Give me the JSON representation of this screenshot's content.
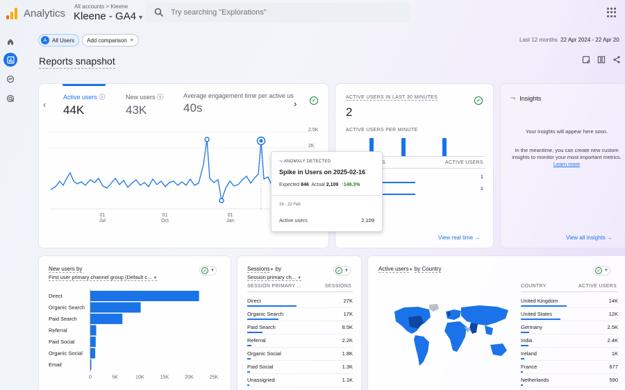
{
  "brand": {
    "app_name": "Analytics",
    "breadcrumb": "All accounts > Kleene",
    "property": "Kleene - GA4",
    "logo_colors": [
      "#f9ab00",
      "#e37400",
      "#e8710a"
    ]
  },
  "search": {
    "placeholder": "Try searching \"Explorations\""
  },
  "filters": {
    "segment_badge": "A",
    "segment": "All Users",
    "add_comparison": "Add comparison"
  },
  "date_range": {
    "label": "Last 12 months",
    "value": "22 Apr 2024 - 22 Apr 20"
  },
  "page_title": "Reports snapshot",
  "overview": {
    "metrics": [
      {
        "label": "Active users",
        "value": "44K"
      },
      {
        "label": "New users",
        "value": "43K"
      },
      {
        "label": "Average engagement time per active us",
        "value": "40s"
      }
    ],
    "y_ticks": [
      "2.5K",
      "2K"
    ],
    "x_ticks": [
      {
        "day": "01",
        "month": "Jul"
      },
      {
        "day": "01",
        "month": "Oct"
      },
      {
        "day": "01",
        "month": "Jan"
      }
    ]
  },
  "tooltip": {
    "tag": "ANOMALY DETECTED",
    "title": "Spike in Users on 2025-02-16",
    "expected_label": "Expected",
    "expected_value": "846",
    "actual_label": "Actual",
    "actual_value": "2,109",
    "pct": "149.3%",
    "date": "16 - 22 Feb",
    "metric_label": "Active users",
    "metric_value": "2,109"
  },
  "realtime": {
    "title": "ACTIVE USERS IN LAST 30 MINUTES",
    "count": "2",
    "per_minute_label": "ACTIVE USERS PER MINUTE",
    "col_left": "ES",
    "col_right": "ACTIVE USERS",
    "rows": [
      {
        "value": "1"
      },
      {
        "value": "1"
      }
    ],
    "link": "View real time"
  },
  "insights": {
    "title": "Insights",
    "line1": "Your insights will appear here soon.",
    "line2": "In the meantime, you can create new custom insights to monitor your most important metrics.",
    "learn_more": "Learn more",
    "link": "View all insights"
  },
  "new_users": {
    "title": "New users by",
    "subtitle": "First user primary channel group (Default c...",
    "categories": [
      "Direct",
      "Organic Search",
      "Paid Search",
      "Referral",
      "Paid Social",
      "Organic Social",
      "Email"
    ],
    "values": [
      22000,
      10200,
      6500,
      1200,
      1100,
      1000,
      150
    ],
    "x_ticks": [
      "0",
      "5K",
      "10K",
      "15K",
      "20K",
      "25K"
    ]
  },
  "sessions": {
    "title": "Sessions",
    "title_suffix": "by",
    "subtitle": "Session primary ch...",
    "col_left": "SESSION PRIMARY ...",
    "col_right": "SESSIONS",
    "rows": [
      {
        "name": "Direct",
        "value": "27K",
        "frac": 1.0
      },
      {
        "name": "Organic Search",
        "value": "17K",
        "frac": 0.63
      },
      {
        "name": "Paid Search",
        "value": "8.5K",
        "frac": 0.31
      },
      {
        "name": "Referral",
        "value": "2.2K",
        "frac": 0.08
      },
      {
        "name": "Organic Social",
        "value": "1.8K",
        "frac": 0.07
      },
      {
        "name": "Paid Social",
        "value": "1.3K",
        "frac": 0.05
      },
      {
        "name": "Unassigned",
        "value": "1.1K",
        "frac": 0.04
      }
    ]
  },
  "geo": {
    "title": "Active users",
    "title_suffix": "by Country",
    "col_left": "COUNTRY",
    "col_right": "ACTIVE USERS",
    "rows": [
      {
        "name": "United Kingdom",
        "value": "14K",
        "frac": 1.0
      },
      {
        "name": "United States",
        "value": "12K",
        "frac": 0.86
      },
      {
        "name": "Germany",
        "value": "2.5K",
        "frac": 0.18
      },
      {
        "name": "India",
        "value": "2.4K",
        "frac": 0.17
      },
      {
        "name": "Ireland",
        "value": "1K",
        "frac": 0.07
      },
      {
        "name": "France",
        "value": "677",
        "frac": 0.05
      },
      {
        "name": "Netherlands",
        "value": "590",
        "frac": 0.04
      }
    ]
  },
  "colors": {
    "accent": "#1a73e8",
    "positive": "#188038"
  }
}
